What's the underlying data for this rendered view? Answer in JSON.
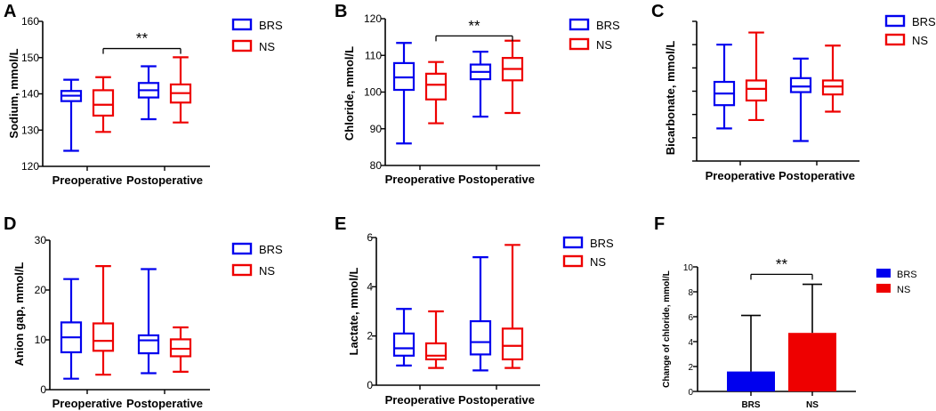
{
  "colors": {
    "BRS": "#0000ee",
    "NS": "#ee0000",
    "axis": "#000000"
  },
  "chart_data": [
    {
      "id": "A",
      "type": "box",
      "ylabel": "Sodium, mmol/L",
      "ylim": [
        120,
        160
      ],
      "yticks": [
        "120",
        "130",
        "140",
        "150",
        "160"
      ],
      "categories": [
        "Preoperative",
        "Postoperative"
      ],
      "legend": [
        "BRS",
        "NS"
      ],
      "series": [
        {
          "name": "BRS",
          "boxes": [
            {
              "min": 124.3,
              "q1": 138.0,
              "median": 139.5,
              "q3": 140.8,
              "max": 143.9
            },
            {
              "min": 133.0,
              "q1": 139.0,
              "median": 141.0,
              "q3": 143.0,
              "max": 147.6
            }
          ]
        },
        {
          "name": "NS",
          "boxes": [
            {
              "min": 129.5,
              "q1": 134.0,
              "median": 137.0,
              "q3": 141.0,
              "max": 144.6
            },
            {
              "min": 132.1,
              "q1": 137.6,
              "median": 140.2,
              "q3": 142.6,
              "max": 150.1
            }
          ]
        }
      ],
      "significance": {
        "label": "**",
        "between": "Preoperative NS vs Postoperative NS",
        "level": 152.5
      }
    },
    {
      "id": "B",
      "type": "box",
      "ylabel": "Chloride, mmol/L",
      "ylim": [
        80,
        120
      ],
      "yticks": [
        "80",
        "90",
        "100",
        "110",
        "120"
      ],
      "categories": [
        "Preoperative",
        "Postoperative"
      ],
      "legend": [
        "BRS",
        "NS"
      ],
      "series": [
        {
          "name": "BRS",
          "boxes": [
            {
              "min": 86.0,
              "q1": 100.6,
              "median": 104.0,
              "q3": 107.9,
              "max": 113.4
            },
            {
              "min": 93.3,
              "q1": 103.5,
              "median": 105.5,
              "q3": 107.5,
              "max": 111.0
            }
          ]
        },
        {
          "name": "NS",
          "boxes": [
            {
              "min": 91.5,
              "q1": 98.0,
              "median": 102.0,
              "q3": 105.0,
              "max": 108.2
            },
            {
              "min": 94.3,
              "q1": 103.2,
              "median": 106.3,
              "q3": 109.3,
              "max": 114.0
            }
          ]
        }
      ],
      "significance": {
        "label": "**",
        "between": "Preoperative NS vs Postoperative NS",
        "level": 115.3
      }
    },
    {
      "id": "C",
      "type": "box",
      "ylabel": "Bicarbonate, mmol/L",
      "ylim": [
        10,
        40
      ],
      "yticks": [],
      "categories": [
        "Preoperative",
        "Postoperative"
      ],
      "legend": [
        "BRS",
        "NS"
      ],
      "series": [
        {
          "name": "BRS",
          "boxes": [
            {
              "min": 17.0,
              "q1": 22.0,
              "median": 24.5,
              "q3": 27.0,
              "max": 35.0
            },
            {
              "min": 14.3,
              "q1": 24.8,
              "median": 26.0,
              "q3": 27.8,
              "max": 32.0
            }
          ]
        },
        {
          "name": "NS",
          "boxes": [
            {
              "min": 18.8,
              "q1": 23.0,
              "median": 25.5,
              "q3": 27.3,
              "max": 37.6
            },
            {
              "min": 20.6,
              "q1": 24.3,
              "median": 26.0,
              "q3": 27.3,
              "max": 34.8
            }
          ]
        }
      ]
    },
    {
      "id": "D",
      "type": "box",
      "ylabel": "Anion gap, mmol/L",
      "ylim": [
        0,
        30
      ],
      "yticks": [
        "0",
        "10",
        "20",
        "30"
      ],
      "categories": [
        "Preoperative",
        "Postoperative"
      ],
      "legend": [
        "BRS",
        "NS"
      ],
      "series": [
        {
          "name": "BRS",
          "boxes": [
            {
              "min": 2.2,
              "q1": 7.5,
              "median": 10.5,
              "q3": 13.5,
              "max": 22.2
            },
            {
              "min": 3.3,
              "q1": 7.3,
              "median": 9.9,
              "q3": 10.9,
              "max": 24.2
            }
          ]
        },
        {
          "name": "NS",
          "boxes": [
            {
              "min": 3.0,
              "q1": 7.8,
              "median": 9.8,
              "q3": 13.3,
              "max": 24.8
            },
            {
              "min": 3.6,
              "q1": 6.7,
              "median": 8.2,
              "q3": 10.1,
              "max": 12.5
            }
          ]
        }
      ]
    },
    {
      "id": "E",
      "type": "box",
      "ylabel": "Lactate, mmol/L",
      "ylim": [
        0,
        6
      ],
      "yticks": [
        "0",
        "2",
        "4",
        "6"
      ],
      "categories": [
        "Preoperative",
        "Postoperative"
      ],
      "legend": [
        "BRS",
        "NS"
      ],
      "series": [
        {
          "name": "BRS",
          "boxes": [
            {
              "min": 0.8,
              "q1": 1.2,
              "median": 1.5,
              "q3": 2.1,
              "max": 3.1
            },
            {
              "min": 0.6,
              "q1": 1.25,
              "median": 1.75,
              "q3": 2.6,
              "max": 5.2
            }
          ]
        },
        {
          "name": "NS",
          "boxes": [
            {
              "min": 0.7,
              "q1": 1.05,
              "median": 1.2,
              "q3": 1.7,
              "max": 3.0
            },
            {
              "min": 0.7,
              "q1": 1.05,
              "median": 1.6,
              "q3": 2.3,
              "max": 5.7
            }
          ]
        }
      ]
    },
    {
      "id": "F",
      "type": "bar",
      "ylabel": "Change of chloride, mmol/L",
      "ylim": [
        0,
        10
      ],
      "yticks": [
        "0",
        "2",
        "4",
        "6",
        "8",
        "10"
      ],
      "categories": [
        "BRS",
        "NS"
      ],
      "legend": [
        "BRS",
        "NS"
      ],
      "values": [
        1.6,
        4.7
      ],
      "error_upper": [
        6.1,
        8.6
      ],
      "significance": {
        "label": "**",
        "between": "BRS vs NS",
        "level": 9.4
      }
    }
  ]
}
